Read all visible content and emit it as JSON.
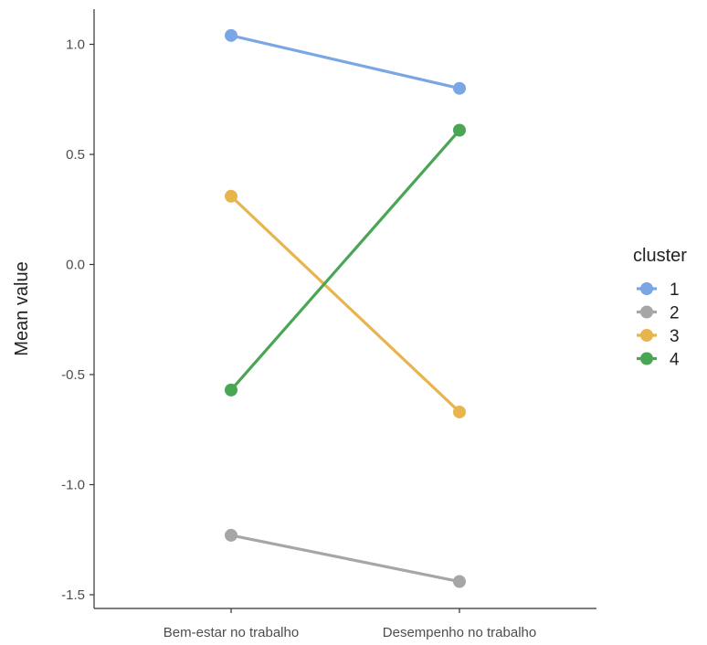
{
  "chart_data": {
    "type": "line",
    "title": "",
    "xlabel": "",
    "ylabel": "Mean value",
    "categories": [
      "Bem-estar no trabalho",
      "Desempenho no trabalho"
    ],
    "ylim": [
      -1.56,
      1.16
    ],
    "yticks": [
      1.0,
      0.5,
      0.0,
      -0.5,
      -1.0,
      -1.5
    ],
    "ytick_labels": [
      "1.0",
      "0.5",
      "0.0",
      "-0.5",
      "-1.0",
      "-1.5"
    ],
    "grid": false,
    "legend": {
      "title": "cluster",
      "placement": "right"
    },
    "series": [
      {
        "name": "1",
        "color": "#7aa6e6",
        "values": [
          1.04,
          0.8
        ]
      },
      {
        "name": "2",
        "color": "#a6a6a6",
        "values": [
          -1.23,
          -1.44
        ]
      },
      {
        "name": "3",
        "color": "#e8b44e",
        "values": [
          0.31,
          -0.67
        ]
      },
      {
        "name": "4",
        "color": "#4aa554",
        "values": [
          -0.57,
          0.61
        ]
      }
    ]
  }
}
